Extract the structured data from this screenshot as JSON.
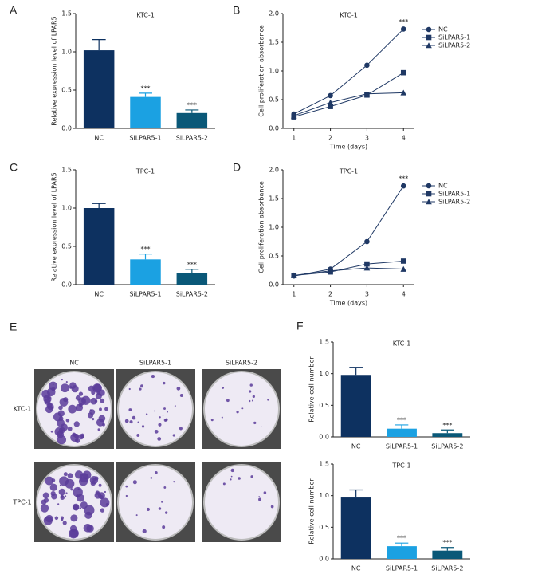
{
  "chart_data": [
    {
      "type": "bar",
      "panel": "A",
      "title": "KTC-1",
      "y_label": "Relative expression level of LPAR5",
      "categories": [
        "NC",
        "SiLPAR5-1",
        "SiLPAR5-2"
      ],
      "values": [
        1.02,
        0.41,
        0.2
      ],
      "errors": [
        0.14,
        0.05,
        0.04
      ],
      "colors": [
        "#0d3160",
        "#1ba1e2",
        "#0a5878"
      ],
      "significance": [
        null,
        "***",
        "***"
      ],
      "ylim": [
        0,
        1.5
      ],
      "yticks": [
        {
          "value": 0,
          "label": "0.0"
        },
        0.5,
        {
          "value": 1,
          "label": "1.0"
        },
        1.5
      ]
    },
    {
      "type": "line",
      "panel": "B",
      "title": "KTC-1",
      "x_label": "Time (days)",
      "y_label": "Cell proliferation absorbance",
      "x": [
        1,
        2,
        3,
        4
      ],
      "significance": [
        null,
        null,
        null,
        "***"
      ],
      "series": [
        {
          "name": "NC",
          "color": "#1f3864",
          "marker": "circle",
          "values": [
            0.25,
            0.57,
            1.1,
            1.73
          ]
        },
        {
          "name": "SiLPAR5-1",
          "color": "#1f3864",
          "marker": "square",
          "values": [
            0.2,
            0.38,
            0.58,
            0.97
          ]
        },
        {
          "name": "SiLPAR5-2",
          "color": "#1f3864",
          "marker": "triangle",
          "values": [
            0.22,
            0.45,
            0.6,
            0.62
          ]
        }
      ],
      "xlim": [
        0.7,
        4.3
      ],
      "xticks": [
        1,
        2,
        3,
        4
      ],
      "ylim": [
        0,
        2
      ],
      "yticks": [
        {
          "value": 0,
          "label": "0.0"
        },
        0.5,
        {
          "value": 1,
          "label": "1.0"
        },
        1.5,
        {
          "value": 2,
          "label": "2.0"
        }
      ]
    },
    {
      "type": "bar",
      "panel": "C",
      "title": "TPC-1",
      "y_label": "Relative expression level of LPAR5",
      "categories": [
        "NC",
        "SiLPAR5-1",
        "SiLPAR5-2"
      ],
      "values": [
        1.0,
        0.33,
        0.15
      ],
      "errors": [
        0.06,
        0.07,
        0.05
      ],
      "colors": [
        "#0d3160",
        "#1ba1e2",
        "#0a5878"
      ],
      "significance": [
        null,
        "***",
        "***"
      ],
      "ylim": [
        0,
        1.5
      ],
      "yticks": [
        {
          "value": 0,
          "label": "0.0"
        },
        0.5,
        {
          "value": 1,
          "label": "1.0"
        },
        1.5
      ]
    },
    {
      "type": "line",
      "panel": "D",
      "title": "TPC-1",
      "x_label": "Time (days)",
      "y_label": "Cell proliferation absorbance",
      "x": [
        1,
        2,
        3,
        4
      ],
      "significance": [
        null,
        null,
        null,
        "***"
      ],
      "series": [
        {
          "name": "NC",
          "color": "#1f3864",
          "marker": "circle",
          "values": [
            0.15,
            0.27,
            0.75,
            1.72
          ]
        },
        {
          "name": "SiLPAR5-1",
          "color": "#1f3864",
          "marker": "square",
          "values": [
            0.16,
            0.22,
            0.36,
            0.41
          ]
        },
        {
          "name": "SiLPAR5-2",
          "color": "#1f3864",
          "marker": "triangle",
          "values": [
            0.16,
            0.24,
            0.29,
            0.27
          ]
        }
      ],
      "xlim": [
        0.7,
        4.3
      ],
      "xticks": [
        1,
        2,
        3,
        4
      ],
      "ylim": [
        0,
        2
      ],
      "yticks": [
        {
          "value": 0,
          "label": "0.0"
        },
        0.5,
        {
          "value": 1,
          "label": "1.0"
        },
        1.5,
        {
          "value": 2,
          "label": "2.0"
        }
      ]
    },
    {
      "type": "bar",
      "panel": "F",
      "title": "KTC-1",
      "y_label": "Relative cell number",
      "categories": [
        "NC",
        "SiLPAR5-1",
        "SiLPAR5-2"
      ],
      "values": [
        0.98,
        0.13,
        0.06
      ],
      "errors": [
        0.12,
        0.06,
        0.05
      ],
      "colors": [
        "#0d3160",
        "#1ba1e2",
        "#0a5878"
      ],
      "significance": [
        null,
        "***",
        "***"
      ],
      "ylim": [
        0,
        1.5
      ],
      "yticks": [
        {
          "value": 0,
          "label": "0.0"
        },
        0.5,
        {
          "value": 1,
          "label": "1.0"
        },
        1.5
      ]
    },
    {
      "type": "bar",
      "title": "TPC-1",
      "y_label": "Relative cell number",
      "categories": [
        "NC",
        "SiLPAR5-1",
        "SiLPAR5-2"
      ],
      "values": [
        0.97,
        0.2,
        0.13
      ],
      "errors": [
        0.12,
        0.05,
        0.05
      ],
      "colors": [
        "#0d3160",
        "#1ba1e2",
        "#0a5878"
      ],
      "significance": [
        null,
        "***",
        "***"
      ],
      "ylim": [
        0,
        1.5
      ],
      "yticks": [
        {
          "value": 0,
          "label": "0.0"
        },
        0.5,
        {
          "value": 1,
          "label": "1.0"
        },
        1.5
      ]
    }
  ],
  "image_panel": {
    "panel": "E",
    "columns": [
      "NC",
      "SiLPAR5-1",
      "SiLPAR5-2"
    ],
    "rows": [
      "KTC-1",
      "TPC-1"
    ]
  }
}
